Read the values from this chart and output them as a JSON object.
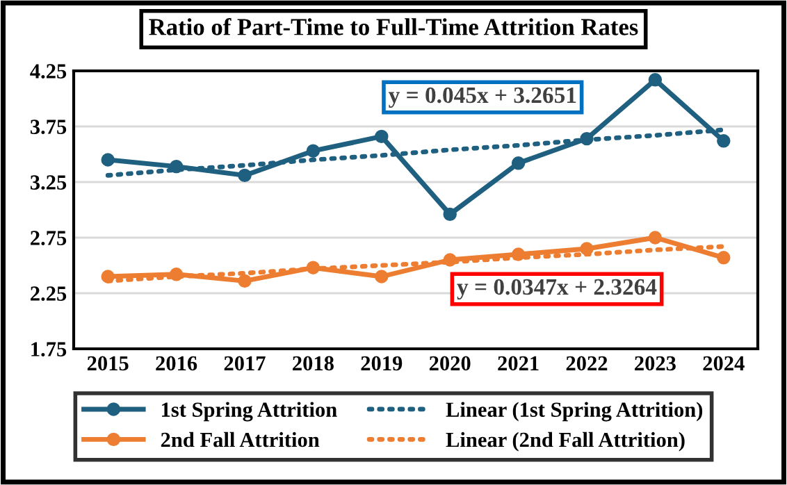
{
  "chart_data": {
    "type": "line",
    "title": "Ratio of Part-Time to Full-Time Attrition Rates",
    "categories": [
      "2015",
      "2016",
      "2017",
      "2018",
      "2019",
      "2020",
      "2021",
      "2022",
      "2023",
      "2024"
    ],
    "series": [
      {
        "name": "1st Spring Attrition",
        "color": "#1f5f7f",
        "marker": "circle",
        "line_style": "solid",
        "values": [
          3.45,
          3.39,
          3.31,
          3.53,
          3.66,
          2.96,
          3.42,
          3.64,
          4.17,
          3.62
        ]
      },
      {
        "name": "2nd Fall Attrition",
        "color": "#ed7d31",
        "marker": "circle",
        "line_style": "solid",
        "values": [
          2.4,
          2.42,
          2.36,
          2.48,
          2.4,
          2.55,
          2.6,
          2.65,
          2.75,
          2.57
        ]
      },
      {
        "name": "Linear (1st Spring Attrition)",
        "color": "#1f5f7f",
        "marker": "none",
        "line_style": "dotted",
        "values": [
          3.31,
          3.36,
          3.4,
          3.45,
          3.49,
          3.54,
          3.58,
          3.63,
          3.67,
          3.72
        ]
      },
      {
        "name": "Linear (2nd Fall Attrition)",
        "color": "#ed7d31",
        "marker": "none",
        "line_style": "dotted",
        "values": [
          2.36,
          2.4,
          2.43,
          2.47,
          2.5,
          2.53,
          2.57,
          2.6,
          2.64,
          2.67
        ]
      }
    ],
    "annotations": [
      "y = 0.045x + 3.2651",
      "y = 0.0347x + 2.3264"
    ],
    "ylim": [
      1.75,
      4.25
    ],
    "yticks": [
      1.75,
      2.25,
      2.75,
      3.25,
      3.75,
      4.25
    ],
    "grid": "y",
    "legend": "bottom"
  }
}
